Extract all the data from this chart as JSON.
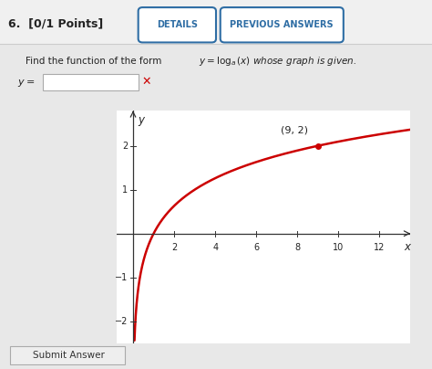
{
  "point_label": "(9, 2)",
  "point_x": 9,
  "point_y": 2,
  "log_base": 3,
  "x_max": 13.5,
  "y_min": -2.5,
  "y_max": 2.8,
  "x_ticks": [
    2,
    4,
    6,
    8,
    10,
    12
  ],
  "y_ticks": [
    -2,
    -1,
    1,
    2
  ],
  "curve_color": "#cc0000",
  "point_color": "#cc0000",
  "bg_color": "#ffffff",
  "page_bg": "#e8e8e8",
  "content_bg": "#ffffff",
  "xlabel": "x",
  "ylabel": "y",
  "curve_linewidth": 1.8,
  "x_mark_color": "#cc0000",
  "btn_color": "#2e6da4",
  "text_color": "#333333",
  "header_bg": "#f0f0f0"
}
